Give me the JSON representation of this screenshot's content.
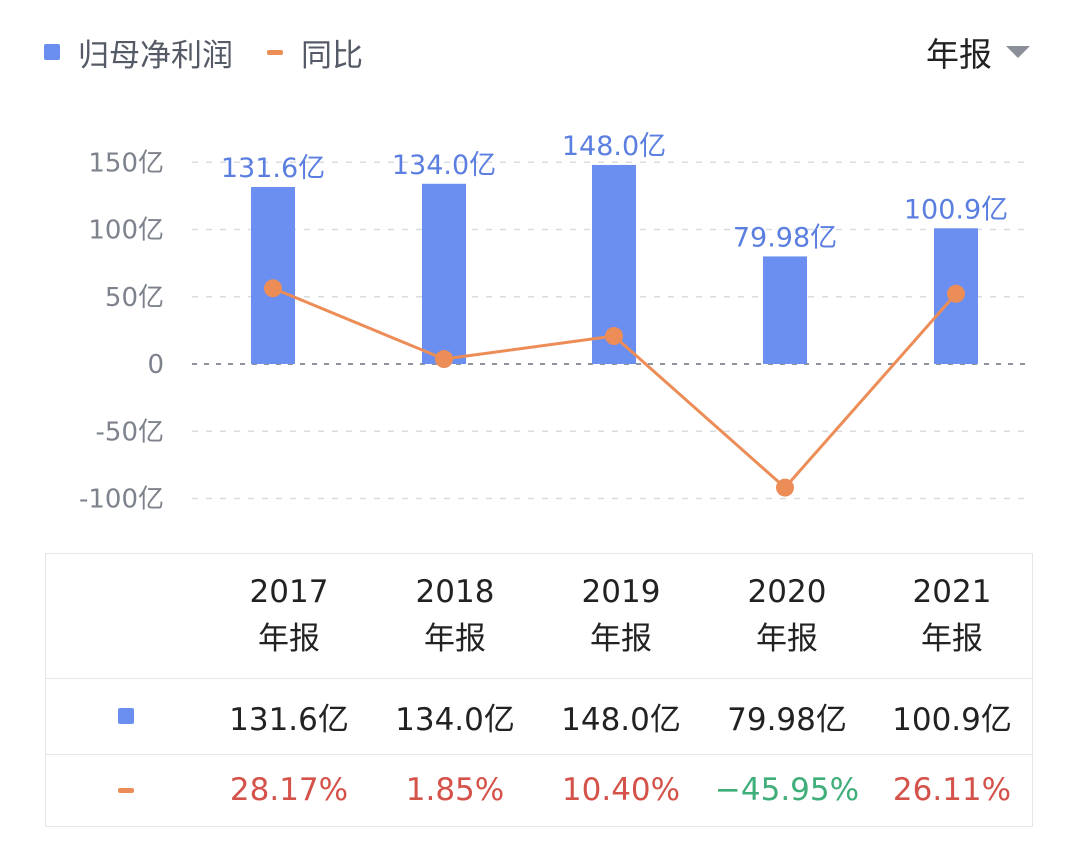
{
  "legend": {
    "profit_label": "归母净利润",
    "yoy_label": "同比"
  },
  "period_selector": {
    "label": "年报"
  },
  "colors": {
    "bar": "#6a8ff0",
    "line": "#ec8d58",
    "positive": "#d4524a",
    "negative": "#3fae79",
    "grid": "#d8dbe0",
    "axis_text": "#7d828c",
    "bar_label": "#5b7fe0"
  },
  "chart_data": {
    "type": "bar",
    "categories": [
      "2017",
      "2018",
      "2019",
      "2020",
      "2021"
    ],
    "y_ticks": [
      "150亿",
      "100亿",
      "50亿",
      "0",
      "-50亿",
      "-100亿"
    ],
    "ylim": [
      -100,
      150
    ],
    "series": [
      {
        "name": "归母净利润",
        "type": "bar",
        "values": [
          131.6,
          134.0,
          148.0,
          79.98,
          100.9
        ],
        "labels": [
          "131.6亿",
          "134.0亿",
          "148.0亿",
          "79.98亿",
          "100.9亿"
        ]
      },
      {
        "name": "同比",
        "type": "line",
        "values": [
          56.3,
          3.7,
          20.8,
          -91.9,
          52.2
        ]
      }
    ]
  },
  "table": {
    "columns": [
      {
        "year": "2017",
        "period": "年报",
        "profit": "131.6亿",
        "yoy": "28.17%",
        "yoy_sign": "positive"
      },
      {
        "year": "2018",
        "period": "年报",
        "profit": "134.0亿",
        "yoy": "1.85%",
        "yoy_sign": "positive"
      },
      {
        "year": "2019",
        "period": "年报",
        "profit": "148.0亿",
        "yoy": "10.40%",
        "yoy_sign": "positive"
      },
      {
        "year": "2020",
        "period": "年报",
        "profit": "79.98亿",
        "yoy": "−45.95%",
        "yoy_sign": "negative"
      },
      {
        "year": "2021",
        "period": "年报",
        "profit": "100.9亿",
        "yoy": "26.11%",
        "yoy_sign": "positive"
      }
    ]
  }
}
